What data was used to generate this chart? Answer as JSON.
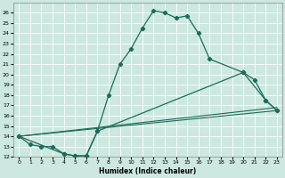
{
  "xlabel": "Humidex (Indice chaleur)",
  "bg_color": "#cce8e0",
  "grid_color": "#b0d8d0",
  "line_color": "#1a6b5a",
  "xlim": [
    -0.5,
    23.5
  ],
  "ylim": [
    12,
    27
  ],
  "yticks": [
    12,
    13,
    14,
    15,
    16,
    17,
    18,
    19,
    20,
    21,
    22,
    23,
    24,
    25,
    26
  ],
  "xticks": [
    0,
    1,
    2,
    3,
    4,
    5,
    6,
    7,
    8,
    9,
    10,
    11,
    12,
    13,
    14,
    15,
    16,
    17,
    18,
    19,
    20,
    21,
    22,
    23
  ],
  "main_x": [
    0,
    1,
    2,
    3,
    4,
    5,
    6,
    7,
    8,
    9,
    10,
    11,
    12,
    13,
    14,
    15,
    16,
    17,
    20,
    22,
    23
  ],
  "main_y": [
    14.0,
    13.2,
    13.0,
    13.0,
    12.3,
    12.1,
    12.1,
    14.5,
    18.0,
    21.0,
    22.5,
    24.5,
    26.2,
    26.0,
    25.5,
    25.7,
    24.0,
    21.5,
    20.2,
    17.5,
    16.5
  ],
  "line2_x": [
    0,
    4,
    5,
    6,
    7,
    20,
    21,
    22,
    23
  ],
  "line2_y": [
    14.0,
    12.3,
    12.1,
    12.1,
    14.5,
    20.2,
    19.5,
    17.5,
    16.5
  ],
  "line3_x": [
    0,
    23
  ],
  "line3_y": [
    14.0,
    16.5
  ],
  "line4_x": [
    0,
    23
  ],
  "line4_y": [
    14.0,
    16.8
  ]
}
